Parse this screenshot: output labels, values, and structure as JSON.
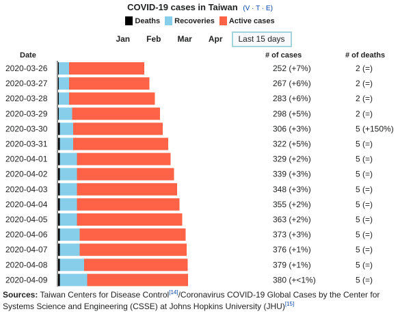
{
  "title": "COVID-19 cases in Taiwan",
  "vte": {
    "v": "V",
    "t": "T",
    "e": "E",
    "sep": "·"
  },
  "legend": [
    {
      "label": "Deaths",
      "color": "#000000"
    },
    {
      "label": "Recoveries",
      "color": "#87ceeb"
    },
    {
      "label": "Active cases",
      "color": "#ff6347"
    }
  ],
  "tabs": [
    {
      "label": "Jan",
      "active": false
    },
    {
      "label": "Feb",
      "active": false
    },
    {
      "label": "Mar",
      "active": false
    },
    {
      "label": "Apr",
      "active": false
    },
    {
      "label": "Last 15 days",
      "active": true
    }
  ],
  "columns": {
    "date": "Date",
    "cases": "# of cases",
    "deaths": "# of deaths"
  },
  "chart_data": {
    "type": "bar",
    "stacked": true,
    "orientation": "horizontal",
    "categories": [
      "2020-03-26",
      "2020-03-27",
      "2020-03-28",
      "2020-03-29",
      "2020-03-30",
      "2020-03-31",
      "2020-04-01",
      "2020-04-02",
      "2020-04-03",
      "2020-04-04",
      "2020-04-05",
      "2020-04-06",
      "2020-04-07",
      "2020-04-08",
      "2020-04-09"
    ],
    "series": [
      {
        "name": "Deaths",
        "color": "#000000",
        "values": [
          2,
          2,
          2,
          2,
          5,
          5,
          5,
          5,
          5,
          5,
          5,
          5,
          5,
          5,
          5
        ]
      },
      {
        "name": "Recoveries",
        "color": "#87ceeb",
        "values": [
          30,
          30,
          30,
          39,
          39,
          39,
          50,
          50,
          50,
          50,
          50,
          58,
          58,
          71,
          80
        ]
      },
      {
        "name": "Active cases",
        "color": "#ff6347",
        "values": [
          220,
          235,
          251,
          257,
          262,
          278,
          274,
          284,
          293,
          300,
          308,
          310,
          313,
          303,
          295
        ]
      }
    ],
    "cases_labels": [
      "252 (+7%)",
      "267 (+6%)",
      "283 (+6%)",
      "298 (+5%)",
      "306 (+3%)",
      "322 (+5%)",
      "329 (+2%)",
      "339 (+3%)",
      "348 (+3%)",
      "355 (+2%)",
      "363 (+2%)",
      "373 (+3%)",
      "376 (+1%)",
      "379 (+1%)",
      "380 (+<1%)"
    ],
    "deaths_labels": [
      "2 (=)",
      "2 (=)",
      "2 (=)",
      "2 (=)",
      "5 (+150%)",
      "5 (=)",
      "5 (=)",
      "5 (=)",
      "5 (=)",
      "5 (=)",
      "5 (=)",
      "5 (=)",
      "5 (=)",
      "5 (=)",
      "5 (=)"
    ],
    "xlim": [
      0,
      380
    ]
  },
  "sources": {
    "label": "Sources:",
    "text1": " Taiwan Centers for Disease Control",
    "ref1": "[14]",
    "text2": "/Coronavirus COVID-19 Global Cases by the Center for Systems Science and Engineering (CSSE) at Johns Hopkins University (JHU)",
    "ref2": "[15]"
  }
}
